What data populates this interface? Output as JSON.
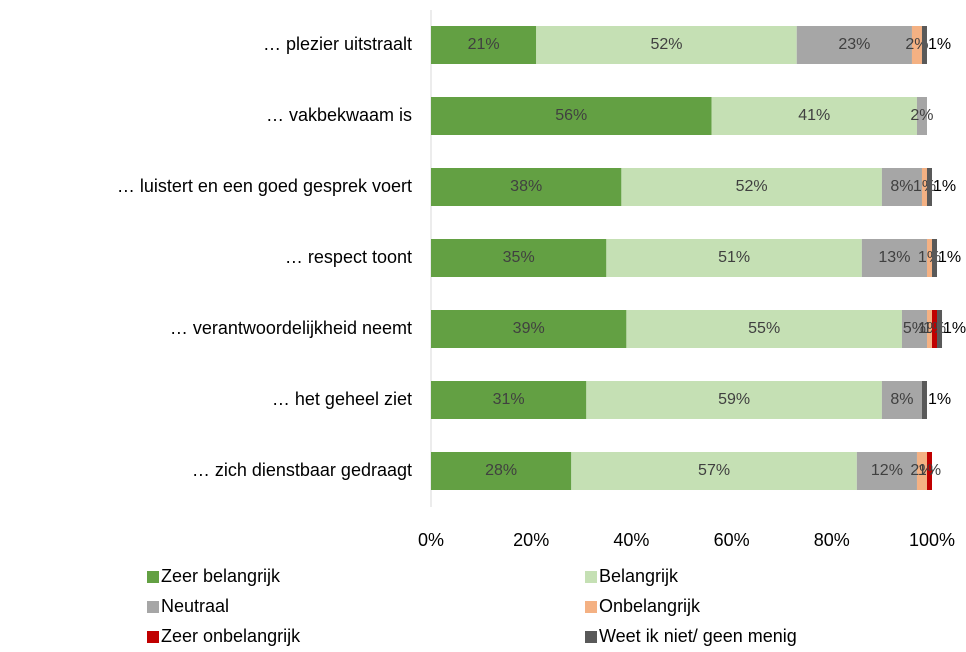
{
  "chart_data": {
    "type": "stacked-barh",
    "categories": [
      "… plezier uitstraalt",
      "… vakbekwaam is",
      "… luistert en een goed gesprek voert",
      "… respect toont",
      "… verantwoordelijkheid neemt",
      "… het geheel ziet",
      "… zich dienstbaar gedraagt"
    ],
    "series": [
      {
        "name": "Zeer belangrijk",
        "color": "#63a043",
        "values": [
          21,
          56,
          38,
          35,
          39,
          31,
          28
        ],
        "value_labels": [
          "21%",
          "56%",
          "38%",
          "35%",
          "39%",
          "31%",
          "28%"
        ]
      },
      {
        "name": "Belangrijk",
        "color": "#c5e0b4",
        "values": [
          52,
          41,
          52,
          51,
          55,
          59,
          57
        ],
        "value_labels": [
          "52%",
          "41%",
          "52%",
          "51%",
          "55%",
          "59%",
          "57%"
        ]
      },
      {
        "name": "Neutraal",
        "color": "#a6a6a6",
        "values": [
          23,
          2,
          8,
          13,
          5,
          8,
          12
        ],
        "value_labels": [
          "23%",
          "2%",
          "8%",
          "13%",
          "5%",
          "8%",
          "12%"
        ]
      },
      {
        "name": "Onbelangrijk",
        "color": "#f4b183",
        "values": [
          2,
          null,
          1,
          1,
          1,
          null,
          2
        ],
        "value_labels": [
          "2%",
          null,
          "1%",
          "1%",
          "1%",
          null,
          "2%"
        ]
      },
      {
        "name": "Zeer onbelangrijk",
        "color": "#c00000",
        "values": [
          null,
          null,
          null,
          null,
          1,
          null,
          1
        ],
        "value_labels": [
          null,
          null,
          null,
          null,
          "1%",
          null,
          "1%"
        ]
      },
      {
        "name": "Weet ik niet/ geen menig",
        "color": "#595959",
        "values": [
          1,
          null,
          1,
          1,
          1,
          1,
          null
        ],
        "value_labels": [
          "1%",
          null,
          "1%",
          "1%",
          "1%",
          "1%",
          null
        ]
      }
    ],
    "xlim": [
      0,
      100
    ],
    "xticks": [
      {
        "value": 0,
        "label": "0%"
      },
      {
        "value": 20,
        "label": "20%"
      },
      {
        "value": 40,
        "label": "40%"
      },
      {
        "value": 60,
        "label": "60%"
      },
      {
        "value": 80,
        "label": "80%"
      },
      {
        "value": 100,
        "label": "100%"
      }
    ]
  }
}
